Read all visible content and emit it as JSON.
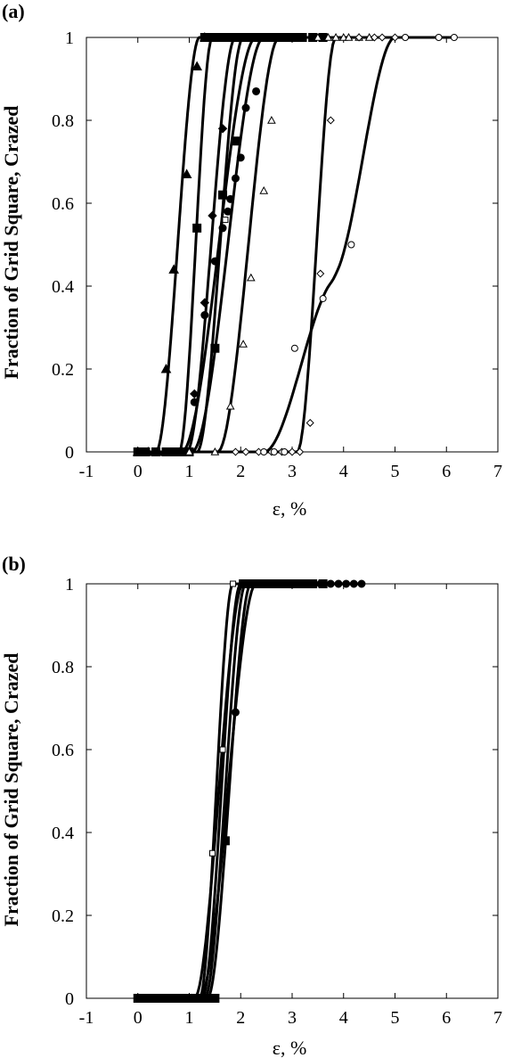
{
  "chart_data": [
    {
      "type": "line",
      "panel_label": "(a)",
      "xlabel": "ε, %",
      "ylabel": "Fraction of Grid Square, Crazed",
      "xlim": [
        -1,
        7
      ],
      "ylim": [
        0,
        1
      ],
      "xticks": [
        "-1",
        "0",
        "1",
        "2",
        "3",
        "4",
        "5",
        "6",
        "7"
      ],
      "yticks": [
        "0",
        "0.2",
        "0.4",
        "0.6",
        "0.8",
        "1"
      ],
      "grid": false,
      "series": [
        {
          "marker": "triangle-filled",
          "fit_start": 0.35,
          "fit_end": 1.2,
          "x_end": 1.35,
          "points": [
            [
              0,
              0
            ],
            [
              0.2,
              0
            ],
            [
              0.4,
              0
            ],
            [
              0.55,
              0.2
            ],
            [
              0.7,
              0.44
            ],
            [
              0.95,
              0.67
            ],
            [
              1.15,
              0.93
            ],
            [
              1.3,
              1
            ]
          ]
        },
        {
          "marker": "square-filled",
          "fit_start": 0.8,
          "fit_end": 1.45,
          "x_end": 3.6,
          "points": [
            [
              0,
              0
            ],
            [
              0.15,
              0
            ],
            [
              0.35,
              0
            ],
            [
              0.55,
              0
            ],
            [
              0.7,
              0
            ],
            [
              0.85,
              0
            ],
            [
              1.0,
              0
            ],
            [
              1.15,
              0.54
            ],
            [
              1.3,
              1
            ],
            [
              1.45,
              1
            ],
            [
              1.55,
              1
            ],
            [
              1.7,
              1
            ],
            [
              1.85,
              1
            ],
            [
              2.0,
              1
            ],
            [
              2.15,
              1
            ],
            [
              2.3,
              1
            ],
            [
              2.45,
              1
            ],
            [
              2.6,
              1
            ],
            [
              2.75,
              1
            ],
            [
              2.9,
              1
            ],
            [
              3.05,
              1
            ],
            [
              3.2,
              1
            ],
            [
              3.4,
              1
            ],
            [
              3.6,
              1
            ]
          ]
        },
        {
          "marker": "circle-filled",
          "fit_start": 0.85,
          "fit_end": 2.3,
          "x_end": 2.3,
          "points": [
            [
              1.1,
              0.12
            ],
            [
              1.3,
              0.33
            ],
            [
              1.5,
              0.46
            ],
            [
              1.65,
              0.54
            ],
            [
              1.75,
              0.58
            ],
            [
              1.8,
              0.61
            ],
            [
              1.9,
              0.66
            ],
            [
              2.0,
              0.71
            ],
            [
              2.1,
              0.83
            ],
            [
              2.3,
              0.87
            ]
          ]
        },
        {
          "marker": "square-filled",
          "fit_start": 1.15,
          "fit_end": 2.05,
          "x_end": 2.3,
          "points": [
            [
              1.5,
              0.25
            ],
            [
              1.65,
              0.62
            ],
            [
              1.9,
              0.75
            ]
          ]
        },
        {
          "marker": "diamond-filled",
          "fit_start": 0.95,
          "fit_end": 1.9,
          "x_end": 2.3,
          "points": [
            [
              1.1,
              0.14
            ],
            [
              1.3,
              0.36
            ],
            [
              1.45,
              0.57
            ],
            [
              1.65,
              0.78
            ]
          ]
        },
        {
          "marker": "square-open",
          "fit_start": 1.05,
          "fit_end": 2.45,
          "x_end": 2.7,
          "points": [
            [
              1.7,
              0.56
            ]
          ]
        },
        {
          "marker": "triangle-open",
          "fit_start": 1.55,
          "fit_end": 2.75,
          "x_end": 4.5,
          "points": [
            [
              1.0,
              0
            ],
            [
              1.5,
              0
            ],
            [
              1.8,
              0.11
            ],
            [
              2.05,
              0.26
            ],
            [
              2.2,
              0.42
            ],
            [
              2.45,
              0.63
            ],
            [
              2.6,
              0.8
            ],
            [
              3.5,
              1
            ],
            [
              3.7,
              1
            ],
            [
              3.85,
              1
            ],
            [
              4.0,
              1
            ],
            [
              4.1,
              1
            ],
            [
              4.3,
              1
            ],
            [
              4.5,
              1
            ]
          ]
        },
        {
          "marker": "diamond-open",
          "fit_start": 3.1,
          "fit_end": 3.85,
          "x_end": 5.0,
          "points": [
            [
              1.9,
              0
            ],
            [
              2.1,
              0
            ],
            [
              2.35,
              0
            ],
            [
              2.6,
              0
            ],
            [
              2.8,
              0
            ],
            [
              3.0,
              0
            ],
            [
              3.15,
              0
            ],
            [
              3.35,
              0.07
            ],
            [
              3.55,
              0.43
            ],
            [
              3.75,
              0.8
            ],
            [
              4.3,
              1
            ],
            [
              4.6,
              1
            ],
            [
              4.75,
              1
            ],
            [
              5.0,
              1
            ]
          ]
        },
        {
          "marker": "circle-open",
          "x_end": 6.15,
          "points": [
            [
              2.45,
              0
            ],
            [
              2.65,
              0
            ],
            [
              2.85,
              0
            ],
            [
              3.05,
              0.25
            ],
            [
              3.6,
              0.37
            ],
            [
              4.15,
              0.5
            ],
            [
              5.2,
              1
            ],
            [
              5.85,
              1
            ],
            [
              6.15,
              1
            ]
          ]
        }
      ]
    },
    {
      "type": "line",
      "panel_label": "(b)",
      "xlabel": "ε, %",
      "ylabel": "Fraction of Grid Square, Crazed",
      "xlim": [
        -1,
        7
      ],
      "ylim": [
        0,
        1
      ],
      "xticks": [
        "-1",
        "0",
        "1",
        "2",
        "3",
        "4",
        "5",
        "6",
        "7"
      ],
      "yticks": [
        "0",
        "0.2",
        "0.4",
        "0.6",
        "0.8",
        "1"
      ],
      "grid": false,
      "series": [
        {
          "marker": "square-filled",
          "fit_start": 1.1,
          "fit_end": 2.05,
          "x_end": 3.6,
          "points": [
            [
              0,
              0
            ],
            [
              0.15,
              0
            ],
            [
              0.3,
              0
            ],
            [
              0.45,
              0
            ],
            [
              0.6,
              0
            ],
            [
              0.75,
              0
            ],
            [
              0.9,
              0
            ],
            [
              1.05,
              0
            ],
            [
              1.2,
              0
            ],
            [
              1.35,
              0
            ],
            [
              1.5,
              0
            ],
            [
              1.7,
              0.38
            ],
            [
              2.05,
              1
            ],
            [
              2.2,
              1
            ],
            [
              2.35,
              1
            ],
            [
              2.5,
              1
            ],
            [
              2.65,
              1
            ],
            [
              2.8,
              1
            ],
            [
              2.95,
              1
            ],
            [
              3.1,
              1
            ],
            [
              3.25,
              1
            ],
            [
              3.4,
              1
            ],
            [
              3.6,
              1
            ]
          ]
        },
        {
          "marker": "circle-filled",
          "fit_start": 1.2,
          "fit_end": 2.3,
          "x_end": 4.35,
          "points": [
            [
              1.9,
              0.69
            ],
            [
              2.1,
              1
            ],
            [
              2.35,
              1
            ],
            [
              2.6,
              1
            ],
            [
              2.85,
              1
            ],
            [
              3.1,
              1
            ],
            [
              3.35,
              1
            ],
            [
              3.55,
              1
            ],
            [
              3.75,
              1
            ],
            [
              3.9,
              1
            ],
            [
              4.05,
              1
            ],
            [
              4.2,
              1
            ],
            [
              4.35,
              1
            ]
          ]
        },
        {
          "marker": "square-open",
          "fit_start": 1.2,
          "fit_end": 1.85,
          "x_end": 2.3,
          "points": [
            [
              1.45,
              0.35
            ],
            [
              1.65,
              0.6
            ],
            [
              1.85,
              1
            ]
          ]
        },
        {
          "marker": "none",
          "fit_start": 1.25,
          "fit_end": 2.0,
          "x_end": 2.3,
          "points": []
        },
        {
          "marker": "none",
          "fit_start": 1.3,
          "fit_end": 2.1,
          "x_end": 2.3,
          "points": []
        },
        {
          "marker": "none",
          "fit_start": 1.35,
          "fit_end": 2.2,
          "x_end": 2.3,
          "points": []
        }
      ]
    }
  ]
}
